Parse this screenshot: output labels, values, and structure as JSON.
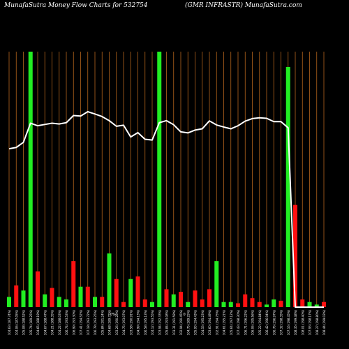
{
  "header": {
    "title_left": "MunafaSutra  Money Flow  Charts for 532754",
    "title_right": "(GMR INFRASTR) MunafaSutra.com"
  },
  "colors": {
    "background": "#000000",
    "gridline": "#b5651d",
    "up": "#22ee22",
    "down": "#ff1111",
    "line": "#ffffff"
  },
  "chart_data": {
    "type": "bar",
    "title": "MunafaSutra  Money Flow  Charts for 532754",
    "subtitle": "(GMR INFRASTR) MunafaSutra.com",
    "ylim": [
      0,
      100
    ],
    "categories": [
      "104.63 (187.74%)",
      "104.06 (187.05%)",
      "105.08 (188.52%)",
      "105.74 (189.25%)",
      "104.65 (188.19%)",
      "104.67 (188.47%)",
      "104.21 (188.35%)",
      "104.22 (188.03%)",
      "106.74 (193.53%)",
      "106.99 (193.30%)",
      "107.41 (194.52%)",
      "107.18 (193.72%)",
      "106.78 (193.25%)",
      "105.84 (191.24%)",
      "104.68 (189.72%)",
      "103.26 (190.28%)",
      "104.75 (193.07%)",
      "103.58 (190.91%)",
      "104.99 (194.13%)",
      "106.58 (195.13%)",
      "104.12 (193.55%)",
      "103.94 (192.33%)",
      "105.84 (193.08%)",
      "103.31 (191.59%)",
      "102.94 (190.45%)",
      "104.75 (189.25%)",
      "105.93 (194.43%)",
      "104.53 (195.23%)",
      "103.60 (194.49%)",
      "102.91 (194.75%)",
      "104.61 (195.21%)",
      "105.64 (197.12%)",
      "107.43 (198.30%)",
      "106.71 (196.22%)",
      "106.06 (195.56%)",
      "105.22 (194.84%)",
      "106.42 (196.94%)",
      "106.76 (196.97%)",
      "107.32 (198.35%)",
      "107.16 (198.45%)",
      "108.35 (199.48%)",
      "108.01 (198.40%)",
      "107.93 (198.17%)",
      "108.27 (198.80%)",
      "108.44 (199.03%)"
    ],
    "x_markers": [
      {
        "after_index": 14,
        "label": "0%"
      },
      {
        "after_index": 24,
        "label": "0"
      }
    ],
    "series": [
      {
        "type": "bar",
        "direction": [
          "up",
          "down",
          "up",
          "up",
          "down",
          "up",
          "down",
          "up",
          "up",
          "down",
          "up",
          "down",
          "up",
          "down",
          "up",
          "down",
          "down",
          "up",
          "down",
          "down",
          "up",
          "up",
          "down",
          "up",
          "down",
          "up",
          "down",
          "down",
          "down",
          "up",
          "up",
          "up",
          "down",
          "down",
          "down",
          "down",
          "up",
          "up",
          "down",
          "up",
          "down",
          "down",
          "up",
          "up",
          "down"
        ],
        "values": [
          4,
          8.5,
          6.5,
          100,
          14,
          5,
          7.5,
          4,
          3,
          18,
          8,
          8,
          4,
          4,
          21,
          11,
          2,
          11,
          12,
          3,
          2,
          100,
          7,
          5,
          6,
          2,
          6.5,
          3,
          7,
          18,
          2,
          2,
          1.5,
          5,
          3.5,
          2,
          1,
          3,
          2.5,
          94,
          40,
          3,
          2,
          1,
          2
        ]
      },
      {
        "type": "line",
        "values": [
          62,
          62.5,
          64.5,
          72,
          71,
          71.5,
          72,
          71.7,
          72.2,
          75,
          74.8,
          76.5,
          75.6,
          74.6,
          73,
          70.8,
          71.2,
          66.6,
          68.3,
          65.7,
          65.4,
          72.2,
          73,
          71.4,
          68.6,
          68.2,
          69.3,
          69.8,
          72.9,
          71.3,
          70.5,
          69.8,
          71,
          72.8,
          73.8,
          74.1,
          73.9,
          72.6,
          72.6,
          70.2,
          0,
          0,
          0,
          0,
          0
        ]
      }
    ]
  }
}
